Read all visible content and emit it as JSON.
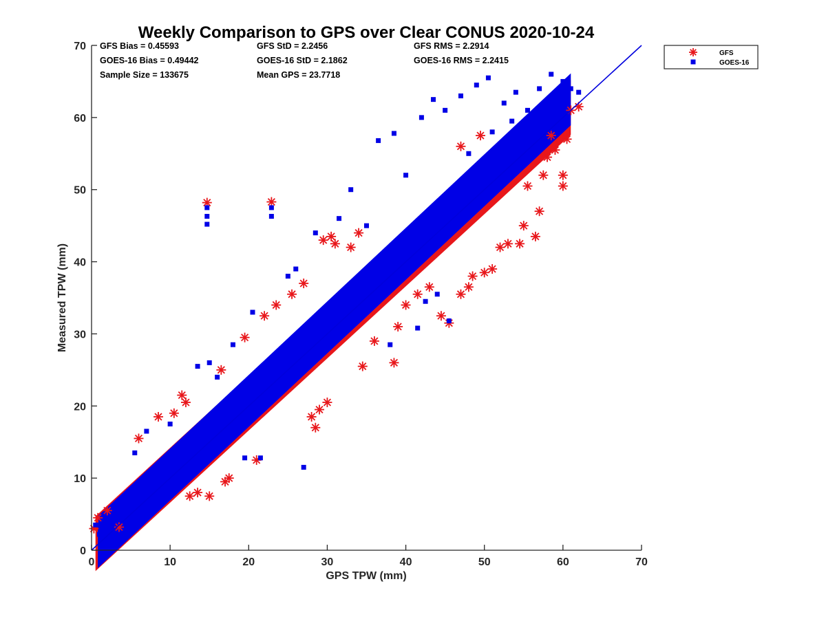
{
  "chart_data": {
    "type": "scatter",
    "title": "Weekly Comparison to GPS over Clear CONUS 2020-10-24",
    "xlabel": "GPS TPW (mm)",
    "ylabel": "Measured TPW (mm)",
    "xlim": [
      0,
      70
    ],
    "ylim": [
      0,
      70
    ],
    "xticks": [
      "0",
      "10",
      "20",
      "30",
      "40",
      "50",
      "60",
      "70"
    ],
    "yticks": [
      "0",
      "10",
      "20",
      "30",
      "40",
      "50",
      "60",
      "70"
    ],
    "grid": false,
    "legend_position": "outside-top-right",
    "reference_line": {
      "x": [
        0,
        70
      ],
      "y": [
        0,
        70
      ],
      "color": "#0000dd"
    },
    "stats": [
      [
        "GFS Bias = 0.45593",
        "GFS StD = 2.2456",
        "GFS RMS = 2.2914"
      ],
      [
        "GOES-16 Bias = 0.49442",
        "GOES-16 StD = 2.1862",
        "GOES-16 RMS = 2.2415"
      ],
      [
        "Sample Size = 133675",
        "Mean GPS = 23.7718",
        ""
      ]
    ],
    "series": [
      {
        "name": "GFS",
        "marker": "asterisk",
        "color": "#e8171b",
        "band": {
          "x_from": 0.5,
          "x_to": 61,
          "slope": 1.0,
          "offset": 0.4,
          "half_width": 3.8
        },
        "points": [
          [
            0.3,
            3.0
          ],
          [
            0.8,
            4.5
          ],
          [
            2.0,
            5.5
          ],
          [
            3.5,
            3.2
          ],
          [
            6.0,
            15.5
          ],
          [
            8.5,
            18.5
          ],
          [
            10.5,
            19.0
          ],
          [
            11.5,
            21.5
          ],
          [
            12.0,
            20.5
          ],
          [
            12.5,
            7.5
          ],
          [
            13.5,
            8.0
          ],
          [
            15.0,
            7.5
          ],
          [
            14.7,
            48.2
          ],
          [
            22.9,
            48.3
          ],
          [
            17.0,
            9.5
          ],
          [
            17.5,
            10.0
          ],
          [
            16.5,
            25.0
          ],
          [
            19.5,
            29.5
          ],
          [
            21.0,
            12.5
          ],
          [
            22.0,
            32.5
          ],
          [
            23.5,
            34.0
          ],
          [
            25.5,
            35.5
          ],
          [
            27.0,
            37.0
          ],
          [
            28.0,
            18.5
          ],
          [
            29.0,
            19.5
          ],
          [
            28.5,
            17.0
          ],
          [
            30.0,
            20.5
          ],
          [
            29.5,
            43.0
          ],
          [
            30.5,
            43.5
          ],
          [
            31.0,
            42.5
          ],
          [
            33.0,
            42.0
          ],
          [
            34.0,
            44.0
          ],
          [
            34.5,
            25.5
          ],
          [
            36.0,
            29.0
          ],
          [
            38.5,
            26.0
          ],
          [
            39.0,
            31.0
          ],
          [
            40.0,
            34.0
          ],
          [
            41.5,
            35.5
          ],
          [
            43.0,
            36.5
          ],
          [
            44.5,
            32.5
          ],
          [
            45.5,
            31.5
          ],
          [
            47.0,
            35.5
          ],
          [
            48.0,
            36.5
          ],
          [
            48.5,
            38.0
          ],
          [
            50.0,
            38.5
          ],
          [
            51.0,
            39.0
          ],
          [
            52.0,
            42.0
          ],
          [
            53.0,
            42.5
          ],
          [
            54.5,
            42.5
          ],
          [
            55.0,
            45.0
          ],
          [
            56.5,
            43.5
          ],
          [
            57.0,
            47.0
          ],
          [
            55.5,
            50.5
          ],
          [
            57.5,
            52.0
          ],
          [
            60.0,
            52.0
          ],
          [
            60.0,
            50.5
          ],
          [
            58.0,
            54.5
          ],
          [
            59.0,
            55.5
          ],
          [
            58.5,
            57.5
          ],
          [
            60.5,
            57.0
          ],
          [
            61.0,
            61.0
          ],
          [
            62.0,
            61.5
          ],
          [
            49.5,
            57.5
          ],
          [
            47.0,
            56.0
          ]
        ]
      },
      {
        "name": "GOES-16",
        "marker": "square",
        "color": "#0000e6",
        "band": {
          "x_from": 0.8,
          "x_to": 61,
          "slope": 1.02,
          "offset": 0.3,
          "half_width": 3.6
        },
        "points": [
          [
            14.7,
            47.5
          ],
          [
            14.7,
            46.3
          ],
          [
            14.7,
            45.2
          ],
          [
            22.9,
            47.5
          ],
          [
            22.9,
            46.3
          ],
          [
            26.0,
            39.0
          ],
          [
            27.0,
            11.5
          ],
          [
            21.5,
            12.8
          ],
          [
            19.5,
            12.8
          ],
          [
            13.5,
            25.5
          ],
          [
            15.0,
            26.0
          ],
          [
            16.0,
            24.0
          ],
          [
            33.0,
            50.0
          ],
          [
            36.5,
            56.8
          ],
          [
            38.5,
            57.8
          ],
          [
            40.0,
            52.0
          ],
          [
            42.0,
            60.0
          ],
          [
            43.5,
            62.5
          ],
          [
            45.0,
            61.0
          ],
          [
            47.0,
            63.0
          ],
          [
            49.0,
            64.5
          ],
          [
            50.5,
            65.5
          ],
          [
            52.5,
            62.0
          ],
          [
            54.0,
            63.5
          ],
          [
            55.5,
            61.0
          ],
          [
            57.0,
            64.0
          ],
          [
            58.5,
            66.0
          ],
          [
            59.0,
            63.0
          ],
          [
            60.0,
            65.0
          ],
          [
            61.0,
            64.0
          ],
          [
            62.0,
            63.5
          ],
          [
            56.5,
            60.0
          ],
          [
            53.5,
            59.5
          ],
          [
            51.0,
            58.0
          ],
          [
            48.0,
            55.0
          ],
          [
            45.5,
            31.8
          ],
          [
            41.5,
            30.8
          ],
          [
            38.0,
            28.5
          ],
          [
            42.5,
            34.5
          ],
          [
            44.0,
            35.5
          ],
          [
            35.0,
            45.0
          ],
          [
            31.5,
            46.0
          ],
          [
            28.5,
            44.0
          ],
          [
            25.0,
            38.0
          ],
          [
            20.5,
            33.0
          ],
          [
            18.0,
            28.5
          ],
          [
            10.0,
            17.5
          ],
          [
            7.0,
            16.5
          ],
          [
            5.5,
            13.5
          ],
          [
            0.5,
            3.5
          ],
          [
            1.0,
            2.2
          ],
          [
            2.5,
            1.5
          ]
        ]
      }
    ]
  }
}
